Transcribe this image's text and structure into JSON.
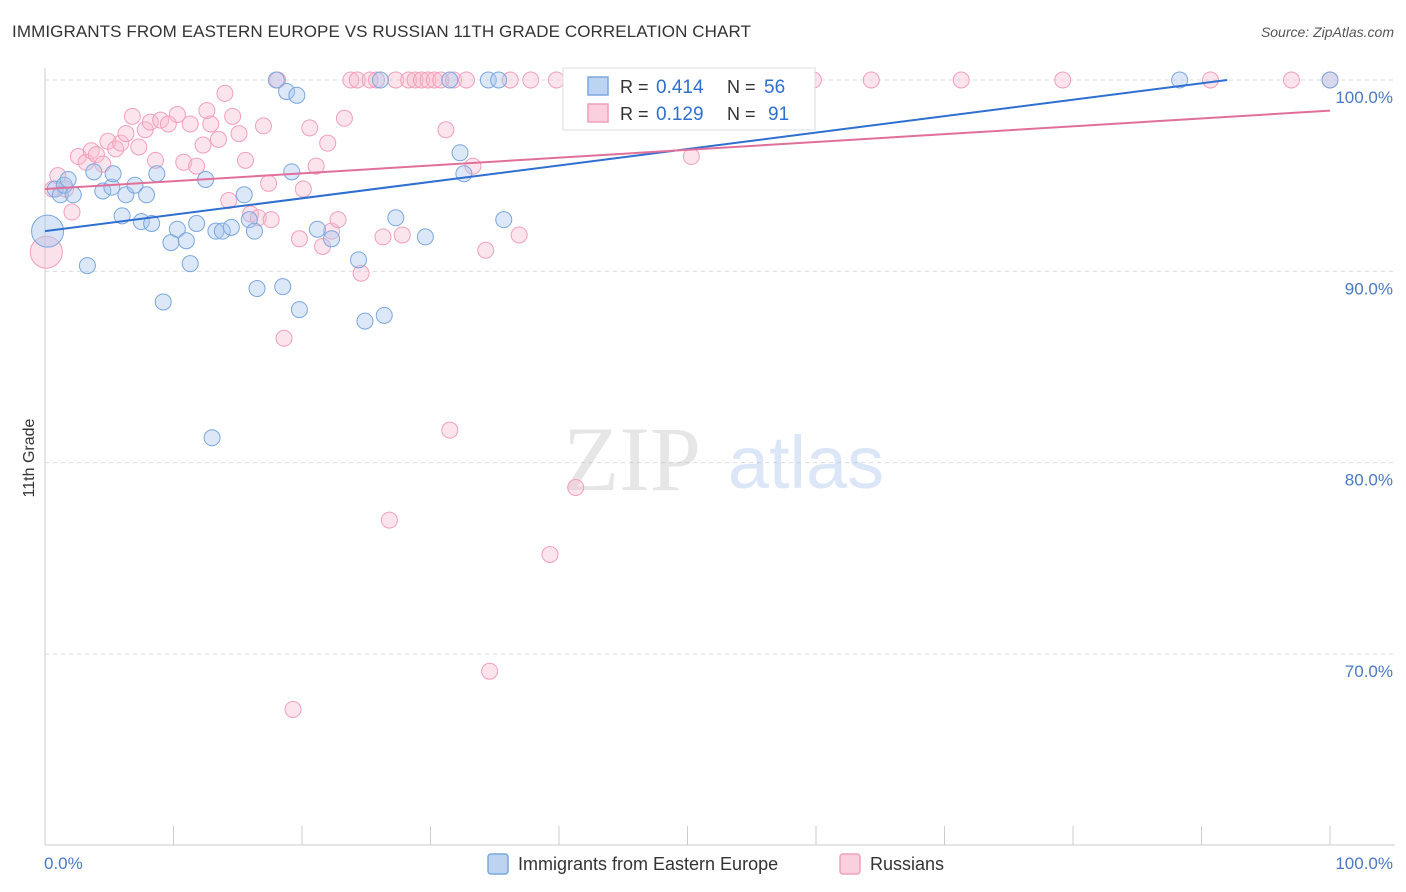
{
  "header": {
    "title": "IMMIGRANTS FROM EASTERN EUROPE VS RUSSIAN 11TH GRADE CORRELATION CHART",
    "source": "Source: ZipAtlas.com"
  },
  "watermark": {
    "zip": "ZIP",
    "atlas": "atlas"
  },
  "legend_top": {
    "r_label": "R =",
    "n_label": "N =",
    "rows": [
      {
        "r": "0.414",
        "n": "56"
      },
      {
        "r": "0.129",
        "n": "91"
      }
    ]
  },
  "colors": {
    "blue": "#7aa7e0",
    "blue_line": "#2f6fcf",
    "pink": "#f2a0ba",
    "pink_line": "#e0709a",
    "tick_text": "#4a79c4",
    "grid": "#dcdcdc"
  },
  "chart_data": {
    "type": "scatter",
    "title": "IMMIGRANTS FROM EASTERN EUROPE VS RUSSIAN 11TH GRADE CORRELATION CHART",
    "xlabel": "",
    "ylabel": "11th Grade",
    "xlim": [
      0,
      100
    ],
    "ylim": [
      60,
      100.8
    ],
    "x_tick_labels": [
      "0.0%",
      "100.0%"
    ],
    "y_ticks": [
      {
        "value": 100,
        "label": "100.0%"
      },
      {
        "value": 90,
        "label": "90.0%"
      },
      {
        "value": 80,
        "label": "80.0%"
      },
      {
        "value": 70,
        "label": "70.0%"
      }
    ],
    "grid": true,
    "legend_position": "top-center",
    "series": [
      {
        "name": "Immigrants from Eastern Europe",
        "color": "#7aa7e0",
        "R": 0.414,
        "N": 56,
        "trend": {
          "x": [
            0,
            92
          ],
          "y": [
            92.1,
            100.0
          ]
        },
        "points": [
          [
            0.2,
            92.1
          ],
          [
            0.8,
            94.3
          ],
          [
            1.2,
            94.0
          ],
          [
            1.5,
            94.5
          ],
          [
            1.8,
            94.8
          ],
          [
            2.2,
            94.0
          ],
          [
            3.3,
            90.3
          ],
          [
            3.8,
            95.2
          ],
          [
            4.5,
            94.2
          ],
          [
            5.2,
            94.4
          ],
          [
            5.3,
            95.1
          ],
          [
            6.0,
            92.9
          ],
          [
            6.3,
            94.0
          ],
          [
            7.0,
            94.5
          ],
          [
            7.5,
            92.6
          ],
          [
            7.9,
            94.0
          ],
          [
            8.3,
            92.5
          ],
          [
            8.7,
            95.1
          ],
          [
            9.2,
            88.4
          ],
          [
            9.8,
            91.5
          ],
          [
            10.3,
            92.2
          ],
          [
            11.0,
            91.6
          ],
          [
            11.3,
            90.4
          ],
          [
            11.8,
            92.5
          ],
          [
            12.5,
            94.8
          ],
          [
            13.0,
            81.3
          ],
          [
            13.3,
            92.1
          ],
          [
            13.8,
            92.1
          ],
          [
            14.5,
            92.3
          ],
          [
            15.5,
            94.0
          ],
          [
            15.9,
            92.7
          ],
          [
            16.3,
            92.1
          ],
          [
            16.5,
            89.1
          ],
          [
            18.0,
            100.0
          ],
          [
            18.5,
            89.2
          ],
          [
            18.8,
            99.4
          ],
          [
            19.2,
            95.2
          ],
          [
            19.6,
            99.2
          ],
          [
            19.8,
            88.0
          ],
          [
            21.2,
            92.2
          ],
          [
            22.3,
            91.7
          ],
          [
            24.4,
            90.6
          ],
          [
            24.9,
            87.4
          ],
          [
            26.1,
            100.0
          ],
          [
            26.4,
            87.7
          ],
          [
            27.3,
            92.8
          ],
          [
            29.6,
            91.8
          ],
          [
            31.5,
            100.0
          ],
          [
            32.3,
            96.2
          ],
          [
            32.6,
            95.1
          ],
          [
            34.5,
            100.0
          ],
          [
            35.3,
            100.0
          ],
          [
            35.7,
            92.7
          ],
          [
            49.9,
            100.0
          ],
          [
            88.3,
            100.0
          ],
          [
            100.0,
            100.0
          ]
        ]
      },
      {
        "name": "Russians",
        "color": "#f2a0ba",
        "R": 0.129,
        "N": 91,
        "trend": {
          "x": [
            0,
            100
          ],
          "y": [
            94.3,
            98.4
          ]
        },
        "points": [
          [
            0.1,
            91.0
          ],
          [
            0.6,
            94.3
          ],
          [
            1.0,
            95.0
          ],
          [
            1.6,
            94.3
          ],
          [
            2.1,
            93.1
          ],
          [
            2.6,
            96.0
          ],
          [
            3.2,
            95.7
          ],
          [
            3.6,
            96.3
          ],
          [
            4.0,
            96.1
          ],
          [
            4.5,
            95.6
          ],
          [
            4.9,
            96.8
          ],
          [
            5.5,
            96.4
          ],
          [
            5.9,
            96.7
          ],
          [
            6.3,
            97.2
          ],
          [
            6.8,
            98.1
          ],
          [
            7.3,
            96.5
          ],
          [
            7.8,
            97.4
          ],
          [
            8.2,
            97.8
          ],
          [
            8.6,
            95.8
          ],
          [
            9.0,
            97.9
          ],
          [
            9.6,
            97.7
          ],
          [
            10.3,
            98.2
          ],
          [
            10.8,
            95.7
          ],
          [
            11.3,
            97.7
          ],
          [
            11.8,
            95.5
          ],
          [
            12.3,
            96.6
          ],
          [
            12.6,
            98.4
          ],
          [
            12.9,
            97.7
          ],
          [
            13.5,
            96.9
          ],
          [
            14.0,
            99.3
          ],
          [
            14.3,
            93.7
          ],
          [
            14.6,
            98.1
          ],
          [
            15.1,
            97.2
          ],
          [
            15.6,
            95.8
          ],
          [
            16.0,
            93.0
          ],
          [
            16.6,
            92.8
          ],
          [
            17.0,
            97.6
          ],
          [
            17.4,
            94.6
          ],
          [
            17.6,
            92.7
          ],
          [
            18.1,
            100.0
          ],
          [
            18.6,
            86.5
          ],
          [
            19.3,
            67.1
          ],
          [
            19.8,
            91.7
          ],
          [
            20.1,
            94.3
          ],
          [
            20.6,
            97.5
          ],
          [
            21.1,
            95.5
          ],
          [
            21.6,
            91.3
          ],
          [
            22.0,
            96.7
          ],
          [
            22.3,
            92.1
          ],
          [
            22.8,
            92.7
          ],
          [
            23.3,
            98.0
          ],
          [
            23.8,
            100.0
          ],
          [
            24.3,
            100.0
          ],
          [
            24.6,
            89.9
          ],
          [
            25.3,
            100.0
          ],
          [
            25.8,
            100.0
          ],
          [
            26.3,
            91.8
          ],
          [
            26.8,
            77.0
          ],
          [
            27.3,
            100.0
          ],
          [
            27.8,
            91.9
          ],
          [
            28.3,
            100.0
          ],
          [
            28.8,
            100.0
          ],
          [
            29.3,
            100.0
          ],
          [
            29.8,
            100.0
          ],
          [
            30.3,
            100.0
          ],
          [
            30.8,
            100.0
          ],
          [
            31.2,
            97.4
          ],
          [
            31.5,
            81.7
          ],
          [
            31.8,
            100.0
          ],
          [
            32.8,
            100.0
          ],
          [
            33.3,
            95.5
          ],
          [
            34.3,
            91.1
          ],
          [
            34.6,
            69.1
          ],
          [
            36.2,
            100.0
          ],
          [
            36.9,
            91.9
          ],
          [
            37.8,
            100.0
          ],
          [
            39.3,
            75.2
          ],
          [
            39.8,
            100.0
          ],
          [
            41.3,
            78.7
          ],
          [
            44.1,
            100.0
          ],
          [
            47.8,
            100.0
          ],
          [
            50.3,
            96.0
          ],
          [
            53.3,
            100.0
          ],
          [
            56.3,
            100.0
          ],
          [
            59.8,
            100.0
          ],
          [
            64.3,
            100.0
          ],
          [
            71.3,
            100.0
          ],
          [
            79.2,
            100.0
          ],
          [
            90.7,
            100.0
          ],
          [
            100.0,
            100.0
          ],
          [
            97.0,
            100.0
          ]
        ]
      }
    ]
  }
}
